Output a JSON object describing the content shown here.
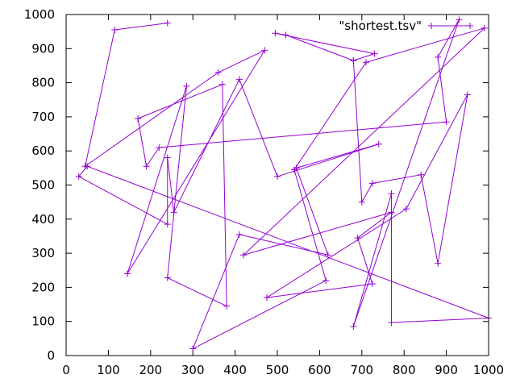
{
  "chart_data": {
    "type": "line",
    "title": "",
    "xlabel": "",
    "ylabel": "",
    "xlim": [
      0,
      1000
    ],
    "ylim": [
      0,
      1000
    ],
    "xticks": [
      "0",
      "100",
      "200",
      "300",
      "400",
      "500",
      "600",
      "700",
      "800",
      "900",
      "1000"
    ],
    "yticks": [
      "0",
      "100",
      "200",
      "300",
      "400",
      "500",
      "600",
      "700",
      "800",
      "900",
      "1000"
    ],
    "grid": false,
    "legend_position": "top-right",
    "series": [
      {
        "name": "\"shortest.tsv\"",
        "color": "#9400d3",
        "marker": "plus",
        "points": [
          [
            240,
            975
          ],
          [
            115,
            955
          ],
          [
            45,
            555
          ],
          [
            360,
            830
          ],
          [
            470,
            895
          ],
          [
            145,
            240
          ],
          [
            285,
            790
          ],
          [
            240,
            228
          ],
          [
            380,
            145
          ],
          [
            370,
            795
          ],
          [
            170,
            695
          ],
          [
            190,
            555
          ],
          [
            220,
            610
          ],
          [
            900,
            685
          ],
          [
            880,
            875
          ],
          [
            930,
            985
          ],
          [
            680,
            85
          ],
          [
            770,
            475
          ],
          [
            770,
            97
          ],
          [
            1000,
            110
          ],
          [
            50,
            555
          ],
          [
            30,
            525
          ],
          [
            240,
            385
          ],
          [
            240,
            580
          ],
          [
            255,
            420
          ],
          [
            410,
            810
          ],
          [
            500,
            525
          ],
          [
            740,
            620
          ],
          [
            545,
            550
          ],
          [
            620,
            295
          ],
          [
            410,
            355
          ],
          [
            300,
            20
          ],
          [
            615,
            220
          ],
          [
            540,
            545
          ],
          [
            710,
            860
          ],
          [
            990,
            960
          ],
          [
            420,
            295
          ],
          [
            770,
            420
          ],
          [
            690,
            345
          ],
          [
            725,
            210
          ],
          [
            475,
            170
          ],
          [
            805,
            430
          ],
          [
            950,
            765
          ],
          [
            880,
            270
          ],
          [
            840,
            530
          ],
          [
            725,
            505
          ],
          [
            700,
            450
          ],
          [
            680,
            865
          ],
          [
            520,
            940
          ],
          [
            495,
            945
          ],
          [
            730,
            885
          ],
          [
            680,
            865
          ]
        ]
      }
    ]
  }
}
